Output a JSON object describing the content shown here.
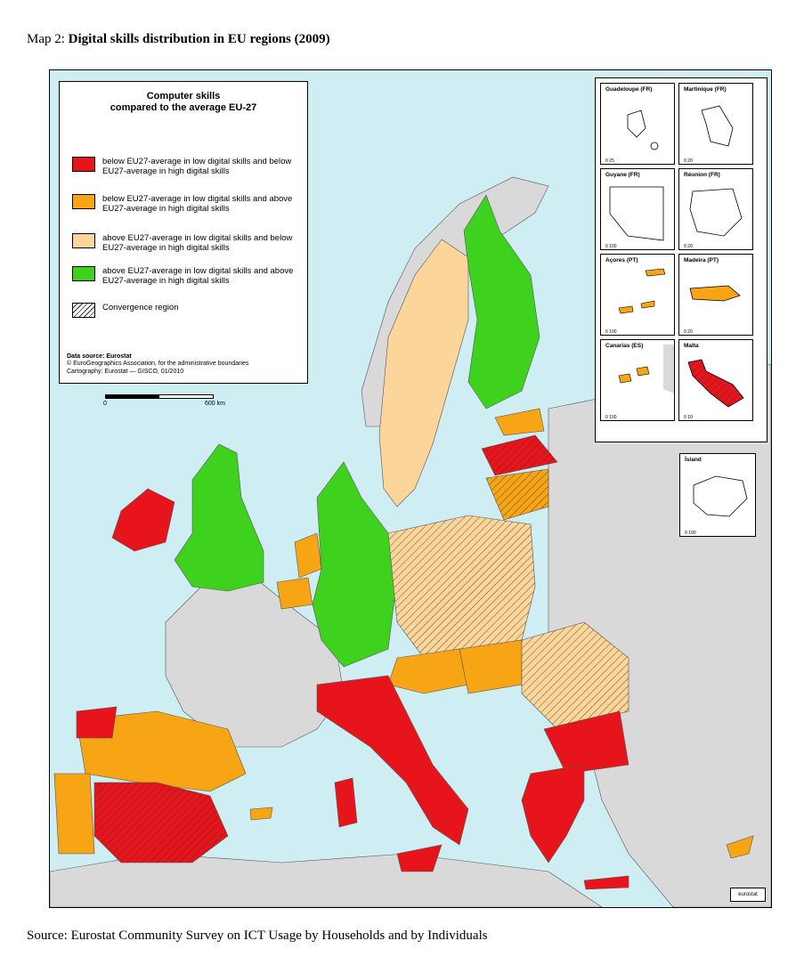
{
  "caption": {
    "prefix": "Map 2: ",
    "title": "Digital skills distribution in EU regions (2009)"
  },
  "source": "Source: Eurostat Community Survey on ICT Usage by Households and by Individuals",
  "legend": {
    "title_line1": "Computer skills",
    "title_line2": "compared to the average EU-27",
    "items": [
      {
        "color": "#e8141b",
        "text": "below EU27-average in low digital skills and below EU27-average in high digital skills"
      },
      {
        "color": "#f7a415",
        "text": "below EU27-average in low digital skills and above EU27-average in high digital skills"
      },
      {
        "color": "#fcd59a",
        "text": "above EU27-average in low digital skills and below EU27-average in high digital skills"
      },
      {
        "color": "#3ed21e",
        "text": "above EU27-average in low digital skills and above EU27-average in high digital skills"
      },
      {
        "color": "hatch",
        "text": "Convergence region"
      }
    ],
    "source_line1": "Data source: Eurostat",
    "source_line2": "© EuroGeographics Association, for the administrative boundaries",
    "source_line3": "Cartography: Eurostat — GISCO, 01/2010"
  },
  "scalebar": {
    "start": "0",
    "end": "600 km"
  },
  "insets": [
    {
      "name": "Guadeloupe (FR)",
      "scale": "0   25"
    },
    {
      "name": "Martinique (FR)",
      "scale": "0   20"
    },
    {
      "name": "Guyane (FR)",
      "scale": "0   100"
    },
    {
      "name": "Réunion (FR)",
      "scale": "0   20"
    },
    {
      "name": "Açores (PT)",
      "scale": "0   100"
    },
    {
      "name": "Madeira (PT)",
      "scale": "0   20"
    },
    {
      "name": "Canarias (ES)",
      "scale": "0   100"
    },
    {
      "name": "Malta",
      "scale": "0   10"
    },
    {
      "name": "Ísland",
      "scale": "0   100"
    }
  ],
  "logo": "eurostat",
  "colors": {
    "sea": "#cfeef3",
    "non_eu": "#d9d9d9",
    "red": "#e8141b",
    "orange": "#f7a415",
    "light_orange": "#fcd59a",
    "green": "#3ed21e"
  }
}
